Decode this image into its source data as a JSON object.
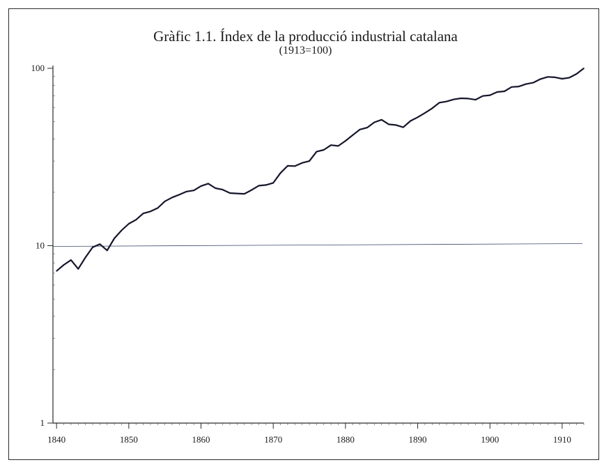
{
  "chart_data": {
    "type": "line",
    "title": "Gràfic 1.1. Índex de la producció industrial catalana",
    "subtitle": "(1913=100)",
    "xlabel": "",
    "ylabel": "",
    "yscale": "log",
    "xlim": [
      1839.5,
      1913
    ],
    "ylim": [
      1,
      100
    ],
    "x_ticks": [
      1840,
      1850,
      1860,
      1870,
      1880,
      1890,
      1900,
      1910
    ],
    "y_ticks": [
      1,
      10,
      100
    ],
    "reference_line": 10,
    "grid": false,
    "series": [
      {
        "x": [
          1840,
          1841,
          1842,
          1843,
          1844,
          1845,
          1846,
          1847,
          1848,
          1849,
          1850,
          1851,
          1852,
          1853,
          1854,
          1855,
          1856,
          1857,
          1858,
          1859,
          1860,
          1861,
          1862,
          1863,
          1864,
          1865,
          1866,
          1867,
          1868,
          1869,
          1870,
          1871,
          1872,
          1873,
          1874,
          1875,
          1876,
          1877,
          1878,
          1879,
          1880,
          1881,
          1882,
          1883,
          1884,
          1885,
          1886,
          1887,
          1888,
          1889,
          1890,
          1891,
          1892,
          1893,
          1894,
          1895,
          1896,
          1897,
          1898,
          1899,
          1900,
          1901,
          1902,
          1903,
          1904,
          1905,
          1906,
          1907,
          1908,
          1909,
          1910,
          1911,
          1912,
          1913
        ],
        "values": [
          7.2,
          7.8,
          8.3,
          7.4,
          8.6,
          9.8,
          10.2,
          9.4,
          11.0,
          12.2,
          13.3,
          14.0,
          15.2,
          15.6,
          16.3,
          17.8,
          18.7,
          19.4,
          20.2,
          20.5,
          21.7,
          22.4,
          21.1,
          20.7,
          19.8,
          19.7,
          19.6,
          20.6,
          21.8,
          22.0,
          22.6,
          25.7,
          28.2,
          28.1,
          29.3,
          30.0,
          33.9,
          34.7,
          36.9,
          36.5,
          39.0,
          42.0,
          45.2,
          46.3,
          49.6,
          51.3,
          48.3,
          47.9,
          46.5,
          50.5,
          53.0,
          56.0,
          59.5,
          64.0,
          65.0,
          66.8,
          67.8,
          67.5,
          66.5,
          69.8,
          70.5,
          73.5,
          74.2,
          78.5,
          79.0,
          81.5,
          83.0,
          87.0,
          89.5,
          89.0,
          87.3,
          88.6,
          93.0,
          100.0
        ],
        "color": "#15152b"
      }
    ]
  }
}
